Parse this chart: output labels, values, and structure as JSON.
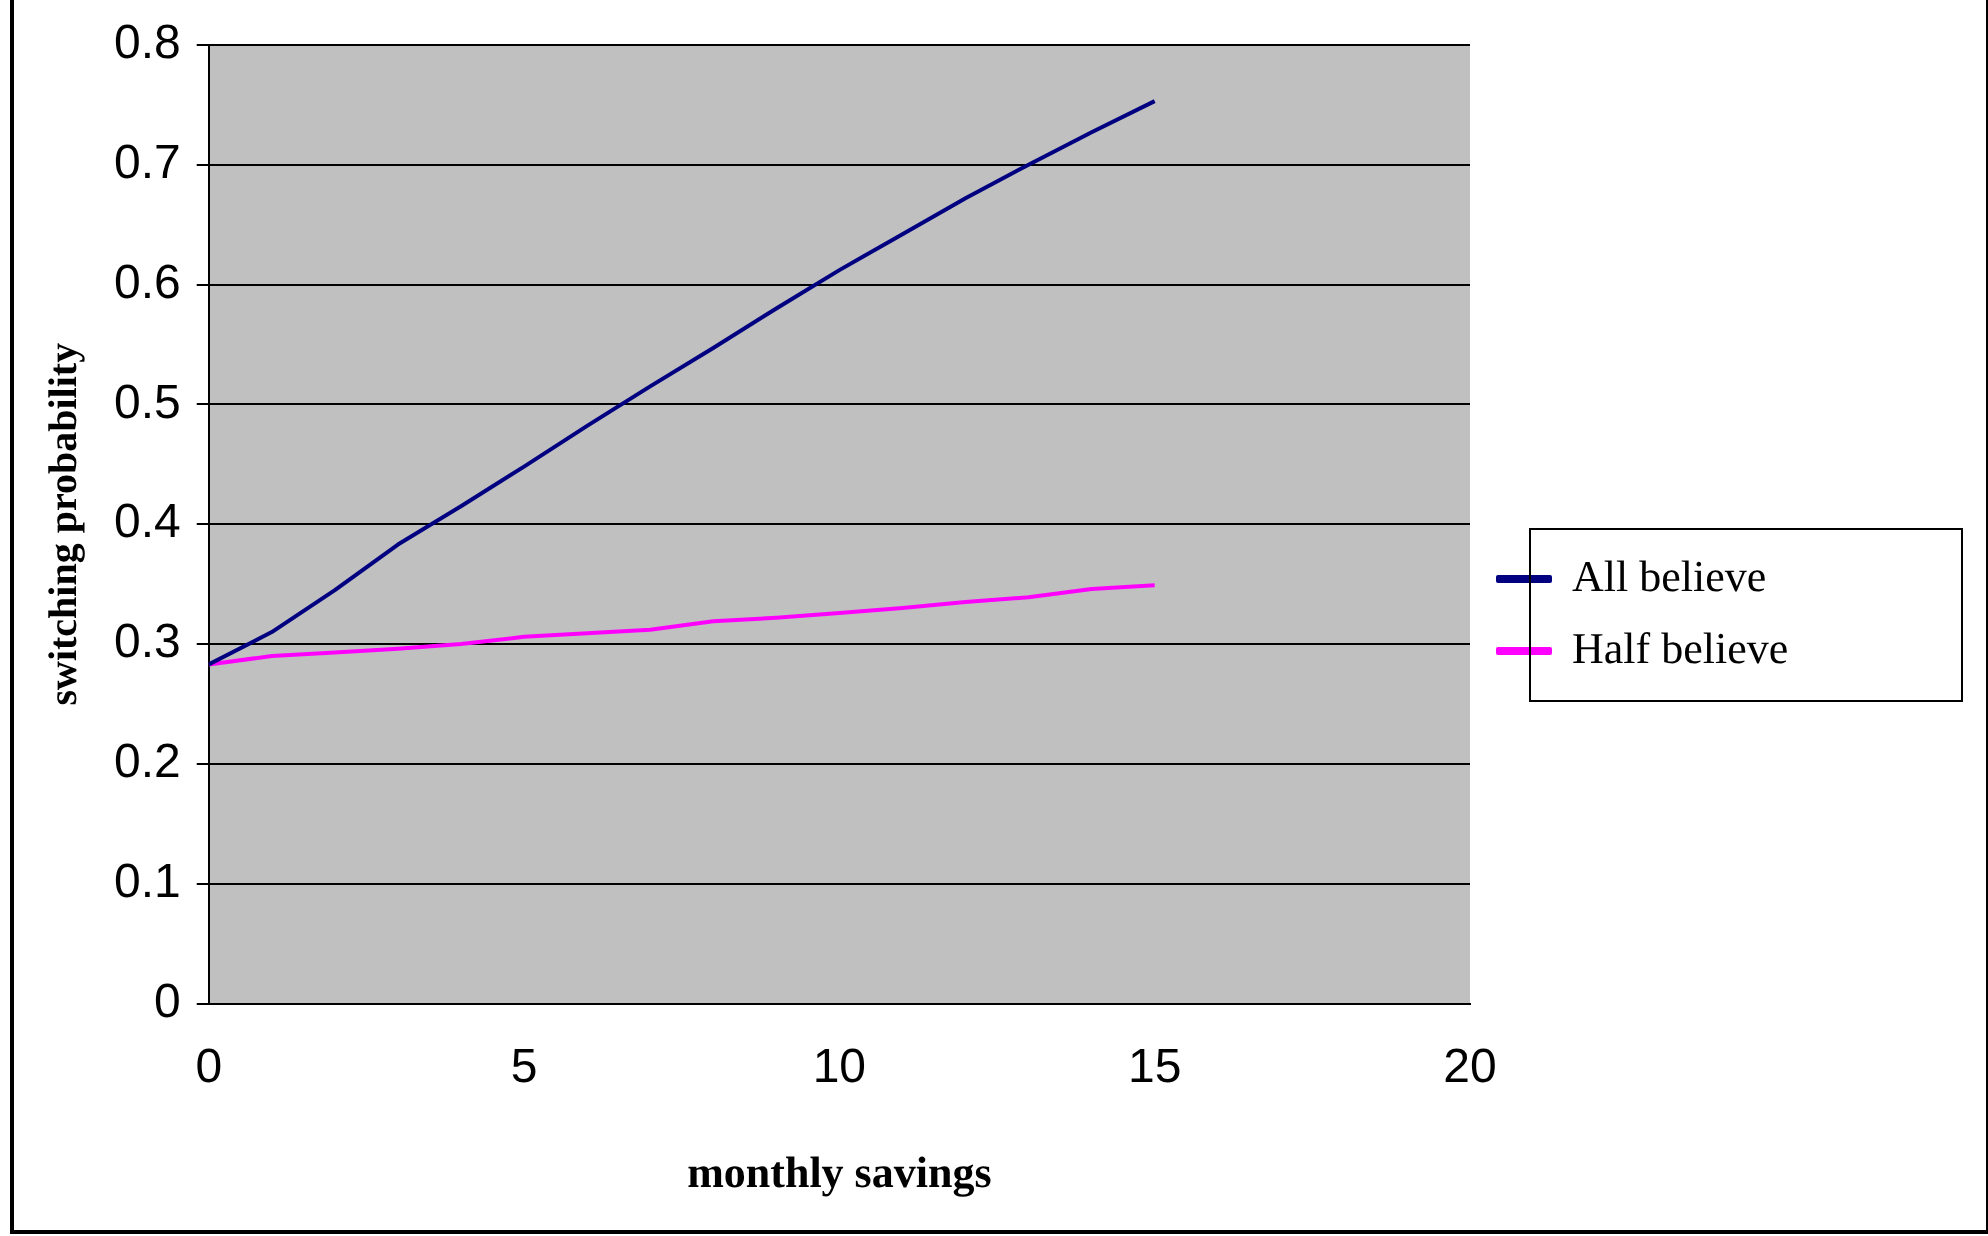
{
  "chart_data": {
    "type": "line",
    "xlabel": "monthly savings",
    "ylabel": "switching probability",
    "x": [
      0,
      1,
      2,
      3,
      4,
      5,
      6,
      7,
      8,
      9,
      10,
      11,
      12,
      13,
      14,
      15
    ],
    "series": [
      {
        "name": "All believe",
        "color": "#000080",
        "values": [
          0.283,
          0.31,
          0.345,
          0.383,
          0.415,
          0.448,
          0.482,
          0.515,
          0.547,
          0.58,
          0.612,
          0.642,
          0.672,
          0.7,
          0.727,
          0.753
        ]
      },
      {
        "name": "Half believe",
        "color": "#ff00ff",
        "values": [
          0.283,
          0.29,
          0.293,
          0.296,
          0.3,
          0.306,
          0.309,
          0.312,
          0.319,
          0.322,
          0.326,
          0.33,
          0.335,
          0.339,
          0.346,
          0.349
        ]
      }
    ],
    "xlim": [
      0,
      20
    ],
    "xticks": [
      0,
      5,
      10,
      15,
      20
    ],
    "ylim": [
      0,
      0.8
    ],
    "yticks": [
      0,
      0.1,
      0.2,
      0.3,
      0.4,
      0.5,
      0.6,
      0.7,
      0.8
    ],
    "grid": "y",
    "legend": "right",
    "marker": "none",
    "line_style": "solid"
  }
}
